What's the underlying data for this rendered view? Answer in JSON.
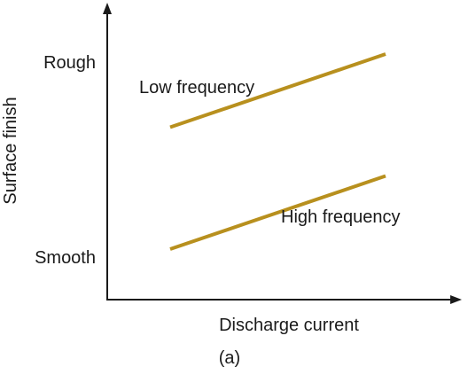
{
  "chart_data": {
    "type": "line",
    "title": "",
    "caption": "(a)",
    "xlabel": "Discharge current",
    "ylabel": "Surface finish",
    "y_tick_labels": [
      "Rough",
      "Smooth"
    ],
    "x_range": [
      0,
      10
    ],
    "y_range": [
      0,
      10
    ],
    "grid": false,
    "line_color": "#B8901E",
    "axis_color": "#1a1a1a",
    "series": [
      {
        "name": "Low frequency",
        "x": [
          3,
          10
        ],
        "y": [
          7,
          10
        ]
      },
      {
        "name": "High frequency",
        "x": [
          3,
          10
        ],
        "y": [
          2,
          5
        ]
      }
    ]
  }
}
